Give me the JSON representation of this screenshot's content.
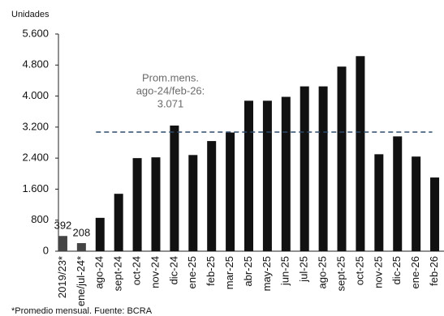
{
  "chart_data": {
    "type": "bar",
    "y_label": "Unidades",
    "footnote": "*Promedio mensual. Fuente: BCRA",
    "categories": [
      "2019/23*",
      "ene/jul-24*",
      "ago-24",
      "sept-24",
      "oct-24",
      "nov-24",
      "dic-24",
      "ene-25",
      "feb-25",
      "mar-25",
      "abr-25",
      "may-25",
      "jun-25",
      "jul-25",
      "ago-25",
      "sept-25",
      "oct-25",
      "nov-25",
      "dic-25",
      "ene-26",
      "feb-26"
    ],
    "values": [
      392,
      208,
      860,
      1480,
      2400,
      2420,
      3240,
      2480,
      2840,
      3060,
      3880,
      3880,
      3980,
      4250,
      4250,
      4760,
      5030,
      2500,
      2960,
      2440,
      1900
    ],
    "value_labels": [
      "392",
      "208",
      null,
      null,
      null,
      null,
      null,
      null,
      null,
      null,
      null,
      null,
      null,
      null,
      null,
      null,
      null,
      null,
      null,
      null,
      null
    ],
    "colors": [
      "#444444",
      "#444444",
      "#111111",
      "#111111",
      "#111111",
      "#111111",
      "#111111",
      "#111111",
      "#111111",
      "#111111",
      "#111111",
      "#111111",
      "#111111",
      "#111111",
      "#111111",
      "#111111",
      "#111111",
      "#111111",
      "#111111",
      "#111111",
      "#111111"
    ],
    "ylim": [
      0,
      5600
    ],
    "yticks": [
      0,
      800,
      {
        "value": 1600,
        "label": "1.600"
      },
      {
        "value": 2400,
        "label": "2.400"
      },
      {
        "value": 3200,
        "label": "3.200"
      },
      {
        "value": 4000,
        "label": "4.000"
      },
      {
        "value": 4800,
        "label": "4.800"
      },
      {
        "value": 5600,
        "label": "5.600"
      }
    ],
    "reference": {
      "lines": [
        "Prom.mens.",
        "ago-24/feb-26:"
      ],
      "value": 3071,
      "value_label": "3.071",
      "from": 2,
      "to": 20,
      "color": "#2e4a6b"
    }
  }
}
